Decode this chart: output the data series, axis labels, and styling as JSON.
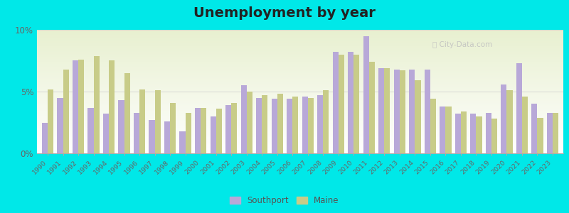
{
  "years": [
    1990,
    1991,
    1992,
    1993,
    1994,
    1995,
    1996,
    1997,
    1998,
    1999,
    2000,
    2001,
    2002,
    2003,
    2004,
    2005,
    2006,
    2007,
    2008,
    2009,
    2010,
    2011,
    2012,
    2013,
    2014,
    2015,
    2016,
    2017,
    2018,
    2019,
    2020,
    2021,
    2022,
    2023
  ],
  "southport": [
    2.5,
    4.5,
    7.5,
    3.7,
    3.2,
    4.3,
    3.3,
    2.7,
    2.6,
    1.8,
    3.7,
    3.0,
    3.9,
    5.5,
    4.5,
    4.4,
    4.4,
    4.6,
    4.7,
    8.2,
    8.2,
    9.5,
    6.9,
    6.8,
    6.8,
    6.8,
    3.8,
    3.2,
    3.2,
    3.3,
    5.6,
    7.3,
    4.0,
    3.3
  ],
  "maine": [
    5.2,
    6.8,
    7.6,
    7.9,
    7.5,
    6.5,
    5.2,
    5.1,
    4.1,
    3.3,
    3.7,
    3.6,
    4.1,
    5.0,
    4.7,
    4.8,
    4.6,
    4.5,
    5.1,
    8.0,
    8.0,
    7.4,
    6.9,
    6.7,
    5.9,
    4.4,
    3.8,
    3.4,
    3.0,
    2.8,
    5.1,
    4.6,
    2.9,
    3.3
  ],
  "southport_color": "#b8a8d8",
  "maine_color": "#c8cc88",
  "title": "Unemployment by year",
  "title_fontsize": 14,
  "ylim": [
    0,
    10
  ],
  "yticks": [
    0,
    5,
    10
  ],
  "ytick_labels": [
    "0%",
    "5%",
    "10%"
  ],
  "bg_top": "#ffffff",
  "bg_bottom": "#e8f0d0",
  "outer_background": "#00e8e8",
  "bar_width": 0.38,
  "legend_labels": [
    "Southport",
    "Maine"
  ]
}
